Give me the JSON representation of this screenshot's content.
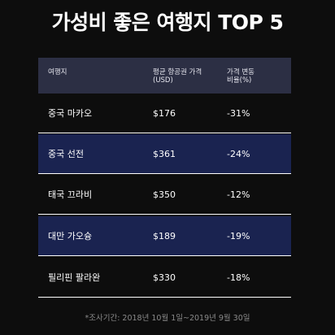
{
  "title": "가성비 좋은 여행지 TOP 5",
  "table": {
    "headers": {
      "destination": "여행지",
      "fare_line1": "평균 항공권 가격",
      "fare_line2": "(USD)",
      "change_line1": "가격 변동",
      "change_line2": "비율(%)"
    },
    "rows": [
      {
        "destination": "중국 마카오",
        "fare": "$176",
        "change": "-31%"
      },
      {
        "destination": "중국 선전",
        "fare": "$361",
        "change": "-24%"
      },
      {
        "destination": "태국 끄라비",
        "fare": "$350",
        "change": "-12%"
      },
      {
        "destination": "대만 가오슝",
        "fare": "$189",
        "change": "-19%"
      },
      {
        "destination": "필리핀 팔라완",
        "fare": "$330",
        "change": "-18%"
      }
    ]
  },
  "footnote": "*조사기간: 2018년 10월 1일~2019년 9월 30일",
  "colors": {
    "background": "#0d0d0d",
    "header": "#2c2f44",
    "highlight_row": "#1a2350",
    "footnote_text": "#8a8a8a"
  }
}
